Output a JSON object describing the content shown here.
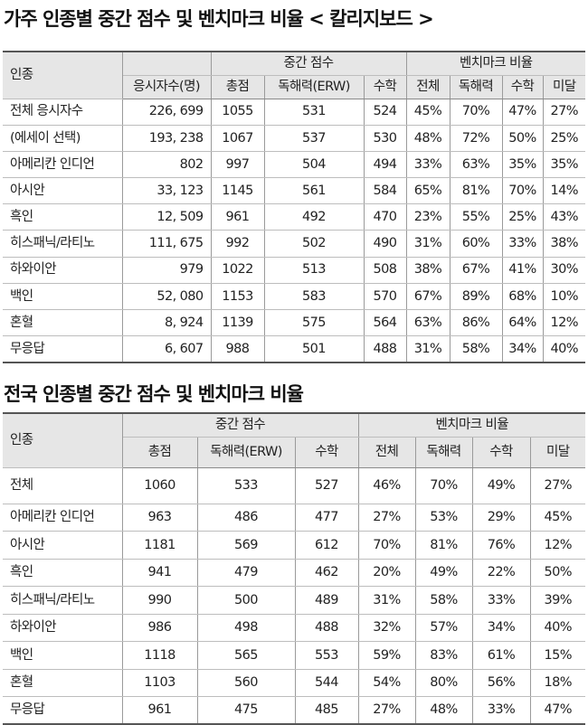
{
  "table1": {
    "title": "가주 인종별 중간 점수 및 벤치마크 비율 < 칼리지보드 >",
    "header": {
      "race": "인종",
      "median_group": "중간 점수",
      "benchmark_group": "벤치마크 비율",
      "test_takers": "응시자수(명)",
      "total": "총점",
      "erw": "독해력(ERW)",
      "math": "수학",
      "b_all": "전체",
      "b_erw": "독해력",
      "b_math": "수학",
      "b_none": "미달"
    },
    "rows": [
      {
        "race": "전체 응시자수",
        "takers": "226, 699",
        "total": "1055",
        "erw": "531",
        "math": "524",
        "b_all": "45%",
        "b_erw": "70%",
        "b_math": "47%",
        "b_none": "27%"
      },
      {
        "race": "(에세이 선택)",
        "takers": "193, 238",
        "total": "1067",
        "erw": "537",
        "math": "530",
        "b_all": "48%",
        "b_erw": "72%",
        "b_math": "50%",
        "b_none": "25%"
      },
      {
        "race": "아메리칸 인디언",
        "takers": "802",
        "total": "997",
        "erw": "504",
        "math": "494",
        "b_all": "33%",
        "b_erw": "63%",
        "b_math": "35%",
        "b_none": "35%"
      },
      {
        "race": "아시안",
        "takers": "33, 123",
        "total": "1145",
        "erw": "561",
        "math": "584",
        "b_all": "65%",
        "b_erw": "81%",
        "b_math": "70%",
        "b_none": "14%"
      },
      {
        "race": "흑인",
        "takers": "12, 509",
        "total": "961",
        "erw": "492",
        "math": "470",
        "b_all": "23%",
        "b_erw": "55%",
        "b_math": "25%",
        "b_none": "43%"
      },
      {
        "race": "히스패닉/라티노",
        "takers": "111, 675",
        "total": "992",
        "erw": "502",
        "math": "490",
        "b_all": "31%",
        "b_erw": "60%",
        "b_math": "33%",
        "b_none": "38%"
      },
      {
        "race": "하와이안",
        "takers": "979",
        "total": "1022",
        "erw": "513",
        "math": "508",
        "b_all": "38%",
        "b_erw": "67%",
        "b_math": "41%",
        "b_none": "30%"
      },
      {
        "race": "백인",
        "takers": "52, 080",
        "total": "1153",
        "erw": "583",
        "math": "570",
        "b_all": "67%",
        "b_erw": "89%",
        "b_math": "68%",
        "b_none": "10%"
      },
      {
        "race": "혼혈",
        "takers": "8, 924",
        "total": "1139",
        "erw": "575",
        "math": "564",
        "b_all": "63%",
        "b_erw": "86%",
        "b_math": "64%",
        "b_none": "12%"
      },
      {
        "race": "무응답",
        "takers": "6, 607",
        "total": "988",
        "erw": "501",
        "math": "488",
        "b_all": "31%",
        "b_erw": "58%",
        "b_math": "34%",
        "b_none": "40%"
      }
    ]
  },
  "table2": {
    "title": "전국 인종별 중간 점수 및 벤치마크 비율",
    "header": {
      "race": "인종",
      "median_group": "중간 점수",
      "benchmark_group": "벤치마크 비율",
      "total": "총점",
      "erw": "독해력(ERW)",
      "math": "수학",
      "b_all": "전체",
      "b_erw": "독해력",
      "b_math": "수학",
      "b_none": "미달"
    },
    "rows": [
      {
        "race": "전체",
        "total": "1060",
        "erw": "533",
        "math": "527",
        "b_all": "46%",
        "b_erw": "70%",
        "b_math": "49%",
        "b_none": "27%"
      },
      {
        "race": "아메리칸 인디언",
        "total": "963",
        "erw": "486",
        "math": "477",
        "b_all": "27%",
        "b_erw": "53%",
        "b_math": "29%",
        "b_none": "45%"
      },
      {
        "race": "아시안",
        "total": "1181",
        "erw": "569",
        "math": "612",
        "b_all": "70%",
        "b_erw": "81%",
        "b_math": "76%",
        "b_none": "12%"
      },
      {
        "race": "흑인",
        "total": "941",
        "erw": "479",
        "math": "462",
        "b_all": "20%",
        "b_erw": "49%",
        "b_math": "22%",
        "b_none": "50%"
      },
      {
        "race": "히스패닉/라티노",
        "total": "990",
        "erw": "500",
        "math": "489",
        "b_all": "31%",
        "b_erw": "58%",
        "b_math": "33%",
        "b_none": "39%"
      },
      {
        "race": "하와이안",
        "total": "986",
        "erw": "498",
        "math": "488",
        "b_all": "32%",
        "b_erw": "57%",
        "b_math": "34%",
        "b_none": "40%"
      },
      {
        "race": "백인",
        "total": "1118",
        "erw": "565",
        "math": "553",
        "b_all": "59%",
        "b_erw": "83%",
        "b_math": "61%",
        "b_none": "15%"
      },
      {
        "race": "혼혈",
        "total": "1103",
        "erw": "560",
        "math": "544",
        "b_all": "54%",
        "b_erw": "80%",
        "b_math": "56%",
        "b_none": "18%"
      },
      {
        "race": "무응답",
        "total": "961",
        "erw": "475",
        "math": "485",
        "b_all": "27%",
        "b_erw": "48%",
        "b_math": "33%",
        "b_none": "47%"
      }
    ]
  }
}
